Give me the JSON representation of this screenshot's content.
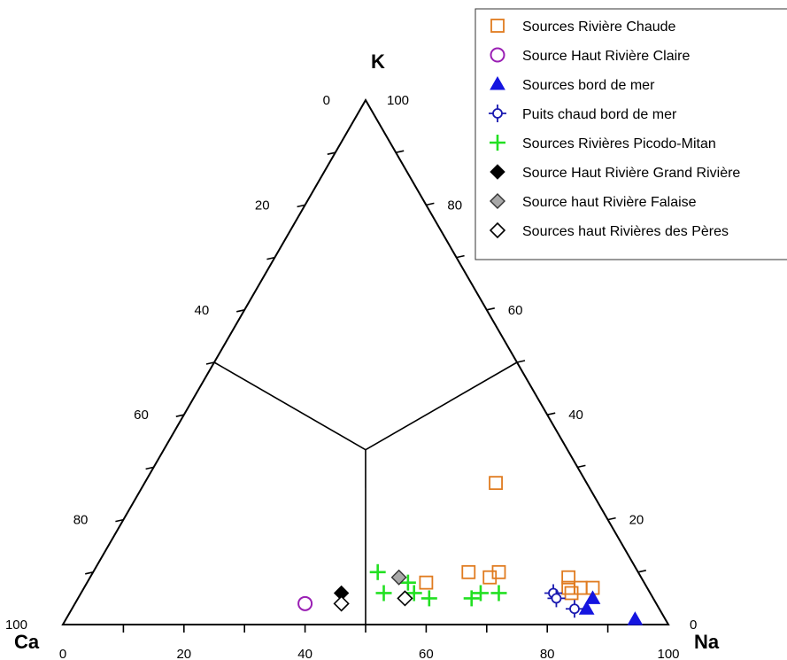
{
  "chart_data": {
    "type": "scatter",
    "subtype": "ternary",
    "apex_labels": {
      "top": "K",
      "left": "Ca",
      "right": "Na"
    },
    "ticks": {
      "bottom": [
        "0",
        "20",
        "40",
        "60",
        "80",
        "100"
      ],
      "left": [
        "0",
        "20",
        "40",
        "60",
        "80",
        "100"
      ],
      "right": [
        "100",
        "80",
        "60",
        "40",
        "20",
        "0"
      ]
    },
    "legend_placement": "top-right",
    "series": [
      {
        "name": "Sources Rivière Chaude",
        "marker": "square-open",
        "color": "#E07B1F",
        "points": [
          {
            "Na": 58,
            "K": 27,
            "Ca": 15
          },
          {
            "Na": 66,
            "K": 9,
            "Ca": 25
          },
          {
            "Na": 62,
            "K": 10,
            "Ca": 28
          },
          {
            "Na": 67,
            "K": 10,
            "Ca": 23
          },
          {
            "Na": 56,
            "K": 8,
            "Ca": 36
          },
          {
            "Na": 79,
            "K": 9,
            "Ca": 12
          },
          {
            "Na": 80,
            "K": 7,
            "Ca": 13
          },
          {
            "Na": 81,
            "K": 6,
            "Ca": 13
          },
          {
            "Na": 82,
            "K": 7,
            "Ca": 11
          },
          {
            "Na": 84,
            "K": 7,
            "Ca": 9
          }
        ]
      },
      {
        "name": "Source Haut Rivière Claire",
        "marker": "circle-open",
        "color": "#9A1FB4",
        "points": [
          {
            "Na": 38,
            "K": 4,
            "Ca": 58
          }
        ]
      },
      {
        "name": "Sources bord de mer",
        "marker": "triangle-filled",
        "color": "#1515E0",
        "points": [
          {
            "Na": 85,
            "K": 5,
            "Ca": 10
          },
          {
            "Na": 85,
            "K": 3,
            "Ca": 12
          },
          {
            "Na": 94,
            "K": 1,
            "Ca": 5
          }
        ]
      },
      {
        "name": "Puits chaud bord de mer",
        "marker": "circle-cross",
        "color": "#1A1AB0",
        "points": [
          {
            "Na": 78,
            "K": 6,
            "Ca": 16
          },
          {
            "Na": 79,
            "K": 5,
            "Ca": 16
          },
          {
            "Na": 83,
            "K": 3,
            "Ca": 14
          }
        ]
      },
      {
        "name": "Sources Rivières Picodo-Mitan",
        "marker": "plus",
        "color": "#22E022",
        "points": [
          {
            "Na": 47,
            "K": 10,
            "Ca": 43
          },
          {
            "Na": 53,
            "K": 8,
            "Ca": 39
          },
          {
            "Na": 50,
            "K": 6,
            "Ca": 44
          },
          {
            "Na": 55,
            "K": 6,
            "Ca": 39
          },
          {
            "Na": 58,
            "K": 5,
            "Ca": 37
          },
          {
            "Na": 65,
            "K": 5,
            "Ca": 30
          },
          {
            "Na": 66,
            "K": 6,
            "Ca": 28
          },
          {
            "Na": 69,
            "K": 6,
            "Ca": 25
          }
        ]
      },
      {
        "name": "Source Haut Rivière Grand Rivière",
        "marker": "diamond-filled",
        "color": "#000000",
        "points": [
          {
            "Na": 43,
            "K": 6,
            "Ca": 51
          }
        ]
      },
      {
        "name": "Source haut Rivière Falaise",
        "marker": "diamond-gray",
        "color": "#A8A8A8",
        "points": [
          {
            "Na": 51,
            "K": 9,
            "Ca": 40
          }
        ]
      },
      {
        "name": "Sources haut Rivières des Pères",
        "marker": "diamond-open",
        "color": "#000000",
        "points": [
          {
            "Na": 44,
            "K": 4,
            "Ca": 52
          },
          {
            "Na": 54,
            "K": 5,
            "Ca": 41
          }
        ]
      }
    ]
  }
}
